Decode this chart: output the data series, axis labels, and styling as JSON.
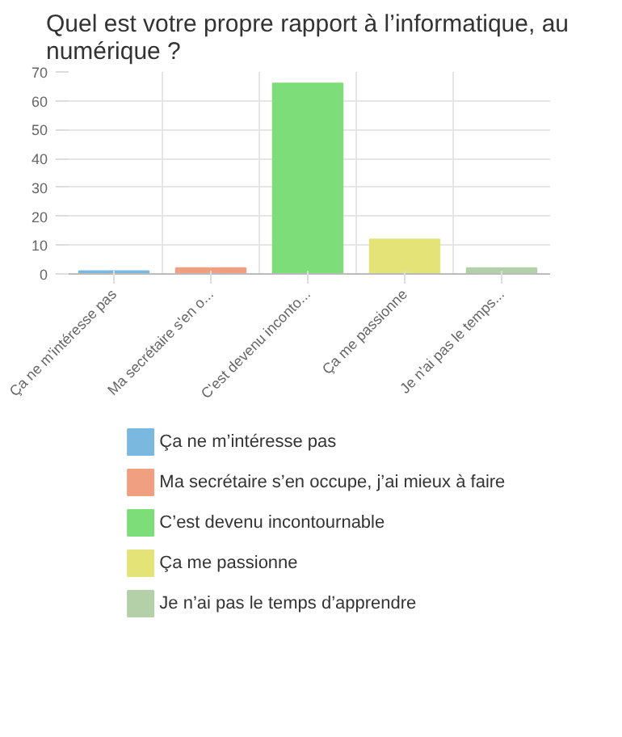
{
  "chart_data": {
    "type": "bar",
    "title": "Quel est votre propre rapport à l’informatique, au numérique ?",
    "categories": [
      "Ça ne m'intéresse pas",
      "Ma secrétaire s'en o...",
      "C'est devenu inconto...",
      "Ça me passionne",
      "Je n'ai pas le temps..."
    ],
    "series": [
      {
        "name": "Ça ne m’intéresse pas",
        "color": "#7ab8e0",
        "values": [
          1,
          null,
          null,
          null,
          null
        ]
      },
      {
        "name": "Ma secrétaire s’en occupe, j’ai mieux à faire",
        "color": "#f0a080",
        "values": [
          null,
          2,
          null,
          null,
          null
        ]
      },
      {
        "name": "C’est devenu incontournable",
        "color": "#7ddd78",
        "values": [
          null,
          null,
          66,
          null,
          null
        ]
      },
      {
        "name": "Ça me passionne",
        "color": "#e3e377",
        "values": [
          null,
          null,
          null,
          12,
          null
        ]
      },
      {
        "name": "Je n’ai pas le temps d’apprendre",
        "color": "#b3d0a9",
        "values": [
          null,
          null,
          null,
          null,
          2
        ]
      }
    ],
    "ylim": [
      0,
      70
    ],
    "yticks": [
      0,
      10,
      20,
      30,
      40,
      50,
      60,
      70
    ],
    "grid": true,
    "legend": "bottom"
  }
}
